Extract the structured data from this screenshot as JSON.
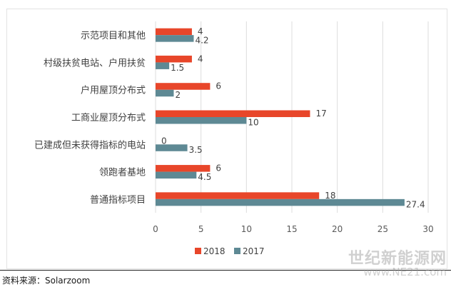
{
  "chart_data": {
    "type": "bar",
    "orientation": "horizontal",
    "categories": [
      "示范项目和其他",
      "村级扶贫电站、户用扶贫",
      "户用屋顶分布式",
      "工商业屋顶分布式",
      "已建成但未获得指标的电站",
      "领跑者基地",
      "普通指标项目"
    ],
    "series": [
      {
        "name": "2018",
        "color": "#E8462A",
        "values": [
          4,
          4,
          6,
          17,
          0,
          6,
          18
        ]
      },
      {
        "name": "2017",
        "color": "#5E8994",
        "values": [
          4.2,
          1.5,
          2,
          10,
          3.5,
          4.5,
          27.4
        ]
      }
    ],
    "xlim": [
      0,
      30
    ],
    "xticks": [
      "0",
      "5",
      "10",
      "15",
      "20",
      "25",
      "30"
    ],
    "grid": "vertical",
    "legend": "bottom",
    "data_labels": true
  },
  "source": "资料来源：Solarzoom",
  "watermark": {
    "line1": "世纪新能源网",
    "line2": "www.NE21.com"
  }
}
